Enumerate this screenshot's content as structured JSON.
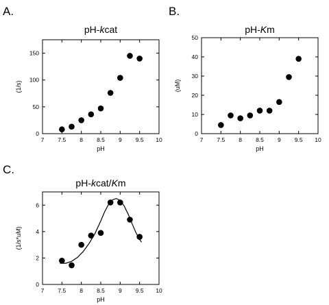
{
  "chart_data": [
    {
      "panel_letter": "A.",
      "type": "scatter",
      "title": "pH-kcat",
      "title_parts": [
        {
          "text": "pH-",
          "italic": false
        },
        {
          "text": "k",
          "italic": true
        },
        {
          "text": "cat",
          "italic": false
        }
      ],
      "xlabel": "pH",
      "ylabel": "(1/s)",
      "xlim": [
        7,
        10
      ],
      "ylim": [
        0,
        175
      ],
      "xticks": [
        7,
        7.5,
        8,
        8.5,
        9,
        9.5,
        10
      ],
      "xtick_labels": [
        "7",
        "7.5",
        "8",
        "8.5",
        "9",
        "9.5",
        "10"
      ],
      "yticks": [
        0,
        50,
        100,
        150
      ],
      "ytick_labels": [
        "0",
        "50",
        "100",
        "150"
      ],
      "grid": false,
      "series": [
        {
          "x": [
            7.5,
            7.75,
            8.0,
            8.25,
            8.5,
            8.75,
            9.0,
            9.25,
            9.5
          ],
          "y": [
            8,
            13,
            25,
            36,
            47,
            76,
            104,
            145,
            140
          ]
        }
      ]
    },
    {
      "panel_letter": "B.",
      "type": "scatter",
      "title": "pH-Km",
      "title_parts": [
        {
          "text": "pH-",
          "italic": false
        },
        {
          "text": "K",
          "italic": true
        },
        {
          "text": "m",
          "italic": false
        }
      ],
      "xlabel": "pH",
      "ylabel": "(uM)",
      "xlim": [
        7,
        10
      ],
      "ylim": [
        0,
        50
      ],
      "xticks": [
        7,
        7.5,
        8,
        8.5,
        9,
        9.5,
        10
      ],
      "xtick_labels": [
        "7",
        "7.5",
        "8",
        "8.5",
        "9",
        "9.5",
        "10"
      ],
      "yticks": [
        0,
        10,
        20,
        30,
        40,
        50
      ],
      "ytick_labels": [
        "0",
        "10",
        "20",
        "30",
        "40",
        "50"
      ],
      "grid": false,
      "series": [
        {
          "x": [
            7.5,
            7.75,
            8.0,
            8.25,
            8.5,
            8.75,
            9.0,
            9.25,
            9.5
          ],
          "y": [
            4.5,
            9.5,
            8,
            9.5,
            12,
            12,
            16.5,
            29.5,
            39
          ]
        }
      ]
    },
    {
      "panel_letter": "C.",
      "type": "scatter",
      "title": "pH-kcat/Km",
      "title_parts": [
        {
          "text": "pH-",
          "italic": false
        },
        {
          "text": "k",
          "italic": true
        },
        {
          "text": "cat/",
          "italic": false
        },
        {
          "text": "K",
          "italic": true
        },
        {
          "text": "m",
          "italic": false
        }
      ],
      "xlabel": "pH",
      "ylabel": "(1/s*uM)",
      "xlim": [
        7,
        10
      ],
      "ylim": [
        0,
        7
      ],
      "xticks": [
        7,
        7.5,
        8,
        8.5,
        9,
        9.5,
        10
      ],
      "xtick_labels": [
        "7",
        "7.5",
        "8",
        "8.5",
        "9",
        "9.5",
        "10"
      ],
      "yticks": [
        0,
        2,
        4,
        6
      ],
      "ytick_labels": [
        "0",
        "2",
        "4",
        "6"
      ],
      "grid": false,
      "series": [
        {
          "x": [
            7.5,
            7.75,
            8.0,
            8.25,
            8.5,
            8.75,
            9.0,
            9.25,
            9.5
          ],
          "y": [
            1.8,
            1.45,
            3.0,
            3.7,
            3.9,
            6.2,
            6.2,
            4.9,
            3.6
          ]
        }
      ],
      "fit_curve": {
        "x": [
          7.45,
          7.6,
          7.75,
          7.9,
          8.05,
          8.2,
          8.35,
          8.5,
          8.6,
          8.7,
          8.8,
          8.9,
          9.0,
          9.1,
          9.2,
          9.3,
          9.4,
          9.5,
          9.55
        ],
        "y": [
          1.6,
          1.6,
          1.75,
          2.05,
          2.5,
          3.1,
          3.85,
          4.8,
          5.5,
          6.05,
          6.4,
          6.5,
          6.35,
          5.95,
          5.35,
          4.65,
          3.95,
          3.4,
          3.2
        ]
      }
    }
  ]
}
